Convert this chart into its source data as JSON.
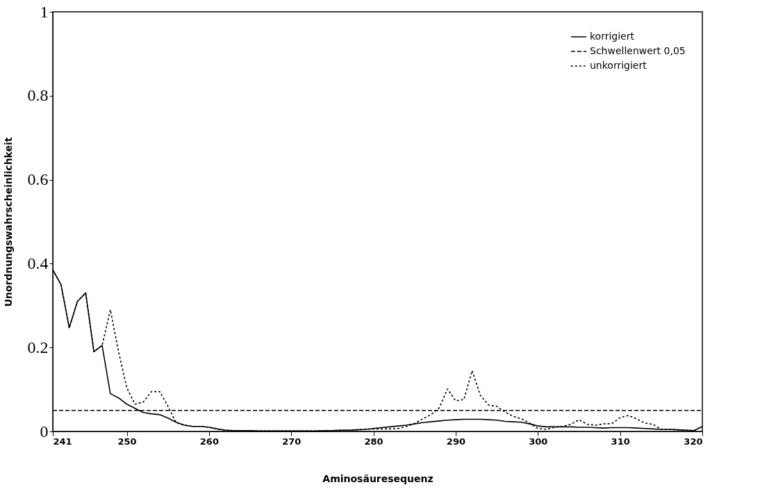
{
  "chart_data": {
    "type": "line",
    "xlabel": "Aminosäuresequenz",
    "ylabel": "Unordnungswahrscheinlichkeit",
    "x": [
      241,
      242,
      243,
      244,
      245,
      246,
      247,
      248,
      249,
      250,
      251,
      252,
      253,
      254,
      255,
      256,
      257,
      258,
      259,
      260,
      261,
      262,
      263,
      264,
      265,
      266,
      267,
      268,
      269,
      270,
      271,
      272,
      273,
      274,
      275,
      276,
      277,
      278,
      279,
      280,
      281,
      282,
      283,
      284,
      285,
      286,
      287,
      288,
      289,
      290,
      291,
      292,
      293,
      294,
      295,
      296,
      297,
      298,
      299,
      300,
      301,
      302,
      303,
      304,
      305,
      306,
      307,
      308,
      309,
      310,
      311,
      312,
      313,
      314,
      315,
      316,
      317,
      318,
      319,
      320
    ],
    "series": [
      {
        "name": "korrigiert",
        "color": "#000000",
        "line_style": "solid",
        "values": [
          0.385,
          0.35,
          0.247,
          0.31,
          0.33,
          0.19,
          0.205,
          0.09,
          0.08,
          0.065,
          0.055,
          0.045,
          0.042,
          0.04,
          0.032,
          0.022,
          0.015,
          0.012,
          0.012,
          0.01,
          0.006,
          0.003,
          0.002,
          0.002,
          0.002,
          0.001,
          0.001,
          0.001,
          0.001,
          0.001,
          0.001,
          0.001,
          0.001,
          0.002,
          0.002,
          0.003,
          0.003,
          0.004,
          0.005,
          0.007,
          0.009,
          0.011,
          0.013,
          0.015,
          0.018,
          0.021,
          0.023,
          0.025,
          0.027,
          0.028,
          0.029,
          0.029,
          0.029,
          0.028,
          0.027,
          0.024,
          0.023,
          0.022,
          0.018,
          0.013,
          0.011,
          0.011,
          0.011,
          0.011,
          0.01,
          0.01,
          0.009,
          0.008,
          0.009,
          0.009,
          0.009,
          0.008,
          0.007,
          0.006,
          0.005,
          0.005,
          0.004,
          0.003,
          0.002,
          0.012
        ]
      },
      {
        "name": "Schwellenwert 0,05",
        "color": "#000000",
        "line_style": "dashed",
        "x": [
          241,
          320
        ],
        "values": [
          0.05,
          0.05
        ]
      },
      {
        "name": "unkorrigiert",
        "color": "#000000",
        "line_style": "dotted",
        "values": [
          0.385,
          0.35,
          0.247,
          0.31,
          0.33,
          0.19,
          0.205,
          0.29,
          0.19,
          0.104,
          0.065,
          0.07,
          0.095,
          0.095,
          0.06,
          0.021,
          0.015,
          0.012,
          0.012,
          0.01,
          0.006,
          0.003,
          0.002,
          0.002,
          0.002,
          0.001,
          0.001,
          0.001,
          0.001,
          0.001,
          0.001,
          0.001,
          0.001,
          0.002,
          0.002,
          0.003,
          0.003,
          0.004,
          0.005,
          0.006,
          0.006,
          0.006,
          0.007,
          0.012,
          0.019,
          0.03,
          0.04,
          0.056,
          0.101,
          0.073,
          0.076,
          0.145,
          0.086,
          0.063,
          0.06,
          0.046,
          0.036,
          0.03,
          0.02,
          0.007,
          0.005,
          0.01,
          0.012,
          0.017,
          0.028,
          0.017,
          0.015,
          0.018,
          0.019,
          0.033,
          0.038,
          0.03,
          0.02,
          0.017,
          0.005,
          0.005,
          0.004,
          0.003,
          0.002,
          0.012
        ]
      }
    ],
    "xlim": [
      241,
      320
    ],
    "xticks": [
      241,
      250,
      260,
      270,
      280,
      290,
      300,
      310,
      320
    ],
    "ylim": [
      0,
      1
    ],
    "yticks": [
      0,
      0.2,
      0.4,
      0.6,
      0.8,
      1
    ],
    "grid": false,
    "legend": "top right"
  }
}
